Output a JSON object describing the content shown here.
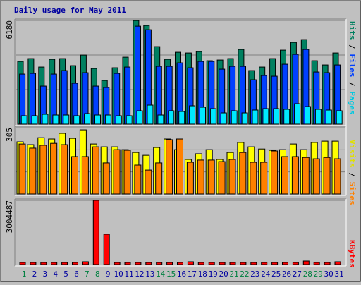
{
  "title": "Daily usage for May 2011",
  "chart_data": [
    {
      "type": "bar",
      "ylim": [
        0,
        6180
      ],
      "yticks": [
        6180
      ],
      "series": [
        {
          "name": "Hits",
          "color": "#008060",
          "values": [
            3738,
            3906,
            3402,
            3864,
            3906,
            3486,
            4116,
            3318,
            2604,
            3360,
            3990,
            6174,
            5880,
            4620,
            3864,
            4284,
            4242,
            4326,
            3780,
            3822,
            3906,
            4452,
            3192,
            3402,
            3906,
            4410,
            4872,
            5040,
            3780,
            3528,
            4242
          ]
        },
        {
          "name": "Files",
          "color": "#0040ff",
          "values": [
            2982,
            3024,
            2268,
            2982,
            3192,
            2436,
            3066,
            2268,
            2184,
            3024,
            3402,
            5838,
            5628,
            3444,
            3444,
            3654,
            3360,
            3738,
            3738,
            3276,
            3444,
            3444,
            2646,
            2898,
            2856,
            3570,
            4158,
            4452,
            3108,
            3066,
            3528
          ]
        },
        {
          "name": "Pages",
          "color": "#00e8ff",
          "values": [
            504,
            504,
            588,
            546,
            546,
            504,
            630,
            546,
            546,
            504,
            504,
            798,
            1134,
            546,
            798,
            756,
            1092,
            1008,
            924,
            672,
            798,
            672,
            840,
            924,
            924,
            882,
            1218,
            1050,
            882,
            840,
            798
          ]
        }
      ]
    },
    {
      "type": "bar",
      "ylim": [
        0,
        305
      ],
      "yticks": [
        305
      ],
      "series": [
        {
          "name": "Visits",
          "color": "#ffff00",
          "values": [
            240,
            227,
            259,
            253,
            279,
            256,
            295,
            230,
            217,
            217,
            204,
            191,
            178,
            214,
            253,
            204,
            159,
            185,
            204,
            159,
            191,
            237,
            217,
            207,
            201,
            204,
            230,
            204,
            237,
            243,
            243
          ]
        },
        {
          "name": "Sites",
          "color": "#ff8000",
          "values": [
            230,
            211,
            224,
            233,
            227,
            172,
            172,
            217,
            143,
            204,
            201,
            133,
            110,
            143,
            250,
            253,
            146,
            156,
            156,
            149,
            159,
            191,
            146,
            146,
            198,
            172,
            172,
            168,
            162,
            168,
            162
          ]
        }
      ]
    },
    {
      "type": "bar",
      "ylim": [
        0,
        3004487
      ],
      "yticks": [
        3004487
      ],
      "categories": [
        "1",
        "2",
        "3",
        "4",
        "5",
        "6",
        "7",
        "8",
        "9",
        "10",
        "11",
        "12",
        "13",
        "14",
        "15",
        "16",
        "17",
        "18",
        "19",
        "20",
        "21",
        "22",
        "23",
        "24",
        "25",
        "26",
        "27",
        "28",
        "29",
        "30",
        "31"
      ],
      "category_colors": [
        "#008040",
        "#0000a0",
        "#0000a0",
        "#0000a0",
        "#0000a0",
        "#0000a0",
        "#008040",
        "#008040",
        "#0000a0",
        "#0000a0",
        "#0000a0",
        "#0000a0",
        "#0000a0",
        "#008040",
        "#008040",
        "#0000a0",
        "#0000a0",
        "#0000a0",
        "#0000a0",
        "#0000a0",
        "#008040",
        "#008040",
        "#0000a0",
        "#0000a0",
        "#0000a0",
        "#0000a0",
        "#0000a0",
        "#008040",
        "#008040",
        "#0000a0",
        "#0000a0"
      ],
      "series": [
        {
          "name": "KBytes",
          "color": "#ff0000",
          "values": [
            99000,
            99000,
            99000,
            99000,
            99000,
            99000,
            132000,
            3004487,
            1420000,
            99000,
            99000,
            99000,
            99000,
            99000,
            99000,
            99000,
            132000,
            99000,
            99000,
            99000,
            99000,
            99000,
            99000,
            99000,
            99000,
            99000,
            99000,
            165000,
            99000,
            99000,
            132000
          ]
        }
      ]
    }
  ]
}
